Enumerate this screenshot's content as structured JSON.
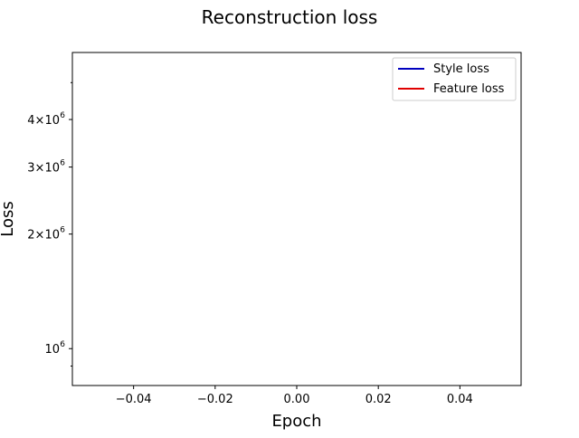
{
  "chart_data": {
    "type": "line",
    "title": "Reconstruction loss",
    "xlabel": "Epoch",
    "ylabel": "Loss",
    "x_scale": "linear",
    "y_scale": "log",
    "xlim": [
      -0.055,
      0.055
    ],
    "ylim": [
      800000,
      6000000
    ],
    "x_ticks": [
      -0.04,
      -0.02,
      0.0,
      0.02,
      0.04
    ],
    "x_tick_labels": [
      "−0.04",
      "−0.02",
      "0.00",
      "0.02",
      "0.04"
    ],
    "y_major_ticks": [
      {
        "value": 1000000,
        "label_base": "10",
        "label_exp": "6"
      },
      {
        "value": 2000000,
        "label_base": "2×10",
        "label_exp": "6"
      },
      {
        "value": 3000000,
        "label_base": "3×10",
        "label_exp": "6"
      },
      {
        "value": 4000000,
        "label_base": "4×10",
        "label_exp": "6"
      }
    ],
    "y_minor_ticks": [
      900000,
      5000000
    ],
    "grid": false,
    "legend_position": "top-right",
    "series": [
      {
        "name": "Style loss",
        "color": "#0000bf",
        "x": [],
        "y": []
      },
      {
        "name": "Feature loss",
        "color": "#e00000",
        "x": [],
        "y": []
      }
    ]
  }
}
